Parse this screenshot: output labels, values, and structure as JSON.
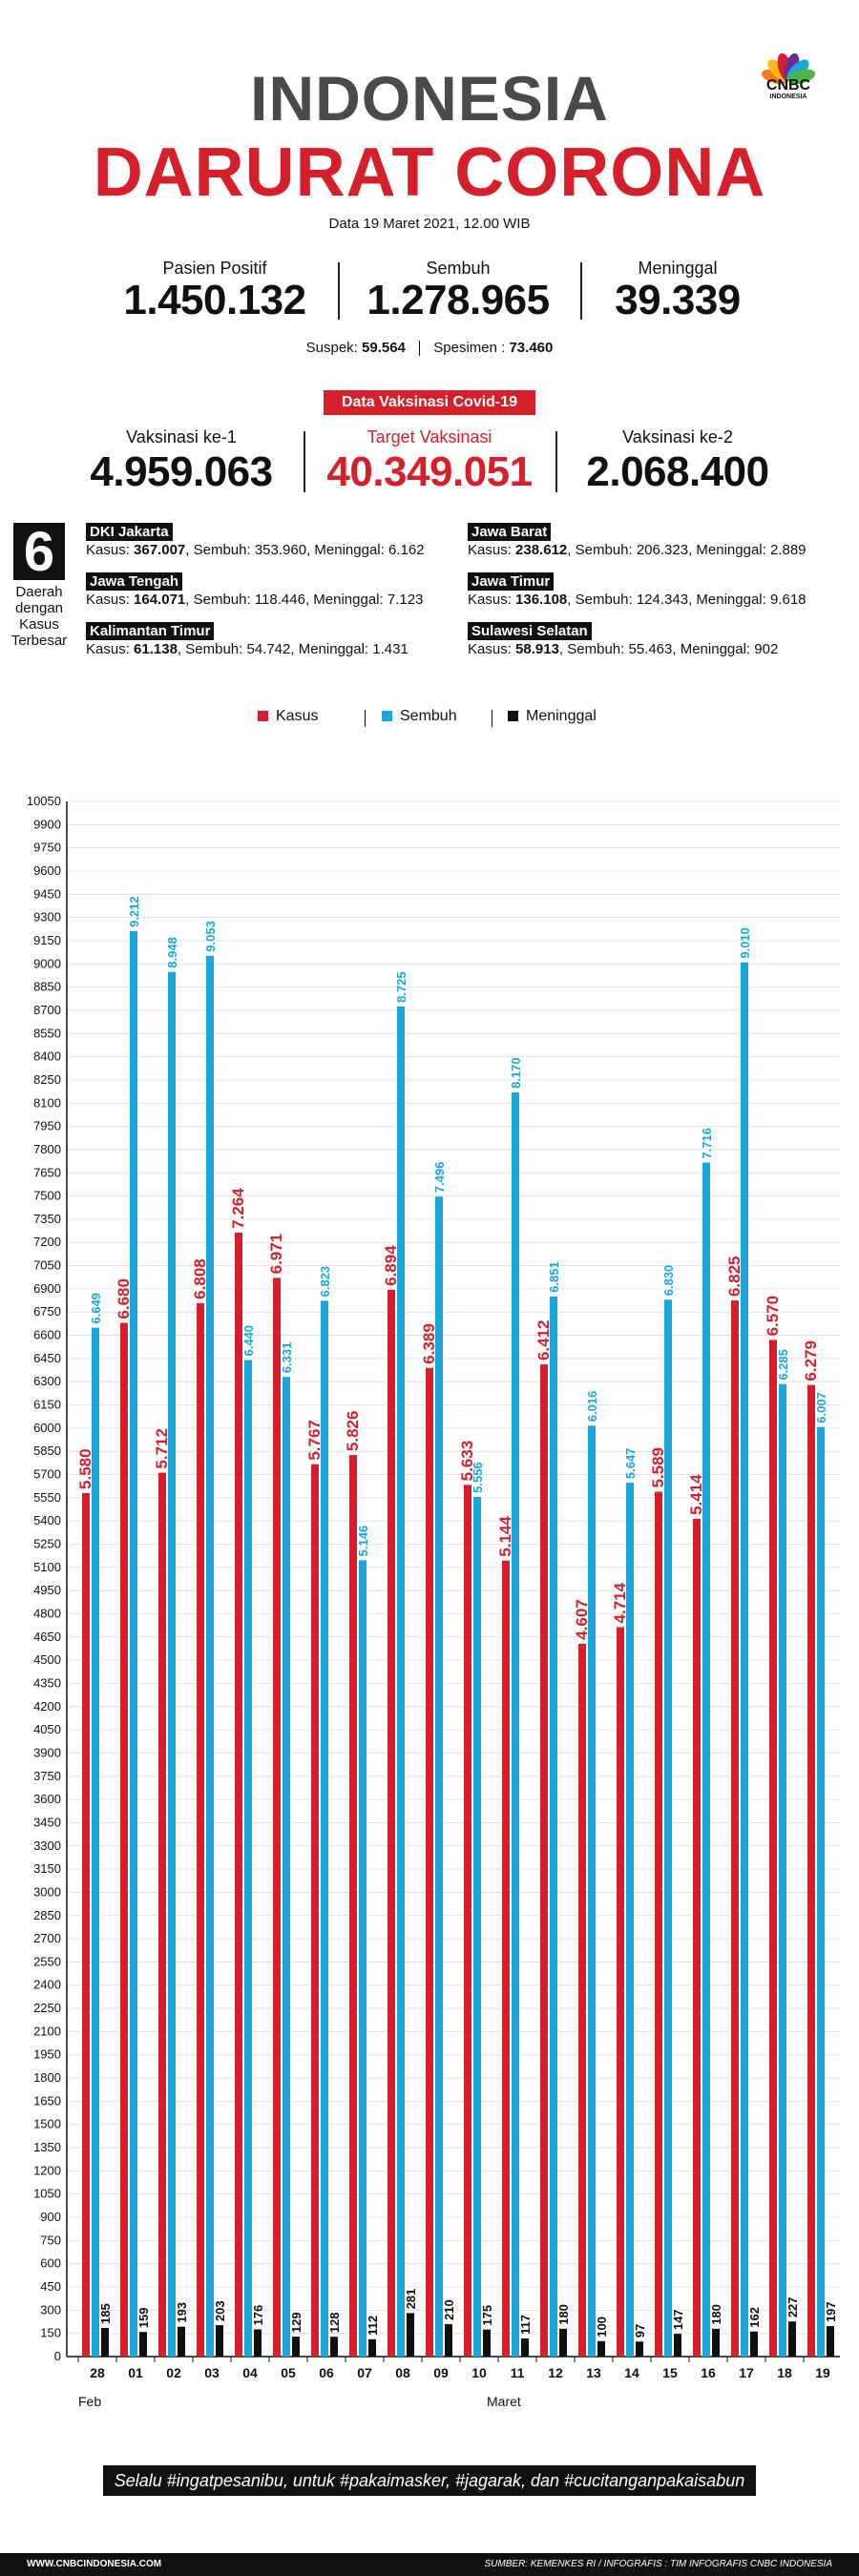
{
  "header": {
    "title_line1": "INDONESIA",
    "title_line2": "DARURAT CORONA",
    "date": "Data 19 Maret 2021, 12.00 WIB",
    "logo": "CNBC",
    "logo_sub": "INDONESIA"
  },
  "stats": {
    "positif_label": "Pasien Positif",
    "positif_value": "1.450.132",
    "sembuh_label": "Sembuh",
    "sembuh_value": "1.278.965",
    "meninggal_label": "Meninggal",
    "meninggal_value": "39.339",
    "suspek_label": "Suspek:",
    "suspek_value": "59.564",
    "spesimen_label": "Spesimen :",
    "spesimen_value": "73.460"
  },
  "vaccination": {
    "banner": "Data Vaksinasi Covid-19",
    "v1_label": "Vaksinasi ke-1",
    "v1_value": "4.959.063",
    "target_label": "Target Vaksinasi",
    "target_value": "40.349.051",
    "v2_label": "Vaksinasi ke-2",
    "v2_value": "2.068.400"
  },
  "provinces": {
    "count": "6",
    "label1": "Daerah",
    "label2": "dengan",
    "label3": "Kasus",
    "label4": "Terbesar",
    "kasus_label": "Kasus:",
    "sembuh_label": "Sembuh:",
    "meninggal_label": "Meninggal:",
    "items": [
      {
        "name": "DKI Jakarta",
        "kasus": "367.007",
        "sembuh": "353.960",
        "meninggal": "6.162"
      },
      {
        "name": "Jawa Barat",
        "kasus": "238.612",
        "sembuh": "206.323",
        "meninggal": "2.889"
      },
      {
        "name": "Jawa Tengah",
        "kasus": "164.071",
        "sembuh": "118.446",
        "meninggal": "7.123"
      },
      {
        "name": "Jawa Timur",
        "kasus": "136.108",
        "sembuh": "124.343",
        "meninggal": "9.618"
      },
      {
        "name": "Kalimantan Timur",
        "kasus": "61.138",
        "sembuh": "54.742",
        "meninggal": "1.431"
      },
      {
        "name": "Sulawesi Selatan",
        "kasus": "58.913",
        "sembuh": "55.463",
        "meninggal": "902"
      }
    ]
  },
  "colors": {
    "kasus": "#d51f2a",
    "sembuh": "#1ba7dc",
    "meninggal": "#111111"
  },
  "chart_data": {
    "type": "bar",
    "categories": [
      "28",
      "01",
      "02",
      "03",
      "04",
      "05",
      "06",
      "07",
      "08",
      "09",
      "10",
      "11",
      "12",
      "13",
      "14",
      "15",
      "16",
      "17",
      "18",
      "19"
    ],
    "x_group_labels": [
      "Feb",
      "Maret"
    ],
    "series": [
      {
        "name": "Kasus",
        "values": [
          5580,
          6680,
          5712,
          6808,
          7264,
          6971,
          5767,
          5826,
          6894,
          6389,
          5633,
          5144,
          6412,
          4607,
          4714,
          5589,
          5414,
          6825,
          6570,
          6279
        ],
        "labels": [
          "5.580",
          "6.680",
          "5.712",
          "6.808",
          "7.264",
          "6.971",
          "5.767",
          "5.826",
          "6.894",
          "6.389",
          "5.633",
          "5.144",
          "6.412",
          "4.607",
          "4.714",
          "5.589",
          "5.414",
          "6.825",
          "6.570",
          "6.279"
        ]
      },
      {
        "name": "Sembuh",
        "values": [
          6649,
          9212,
          8948,
          9053,
          6440,
          6331,
          6823,
          5146,
          8725,
          7496,
          5556,
          8170,
          6851,
          6016,
          5647,
          6830,
          7716,
          9010,
          6285,
          6007
        ],
        "labels": [
          "6.649",
          "9.212",
          "8.948",
          "9.053",
          "6.440",
          "6.331",
          "6.823",
          "5.146",
          "8.725",
          "7.496",
          "5.556",
          "8.170",
          "6.851",
          "6.016",
          "5.647",
          "6.830",
          "7.716",
          "9.010",
          "6.285",
          "6.007"
        ]
      },
      {
        "name": "Meninggal",
        "values": [
          185,
          159,
          193,
          203,
          176,
          129,
          128,
          112,
          281,
          210,
          175,
          117,
          180,
          100,
          97,
          147,
          180,
          162,
          227,
          197
        ],
        "labels": [
          "185",
          "159",
          "193",
          "203",
          "176",
          "129",
          "128",
          "112",
          "281",
          "210",
          "175",
          "117",
          "180",
          "100",
          "97",
          "147",
          "180",
          "162",
          "227",
          "197"
        ]
      }
    ],
    "ylim": [
      0,
      10050
    ],
    "ytick_step": 150,
    "grid": true,
    "legend": "top-center"
  },
  "footer": {
    "tagline": "Selalu #ingatpesanibu, untuk #pakaimasker, #jagarak, dan #cucitanganpakaisabun",
    "website": "WWW.CNBCINDONESIA.COM",
    "source": "SUMBER: KEMENKES RI / INFOGRAFIS : TIM INFOGRAFIS CNBC INDONESIA"
  }
}
